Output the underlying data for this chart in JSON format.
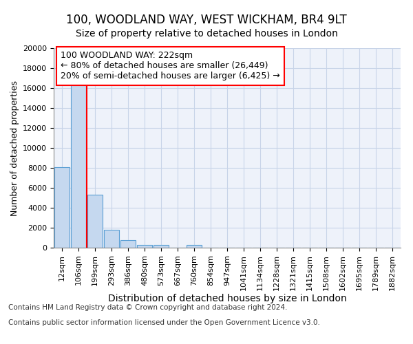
{
  "title1": "100, WOODLAND WAY, WEST WICKHAM, BR4 9LT",
  "title2": "Size of property relative to detached houses in London",
  "xlabel": "Distribution of detached houses by size in London",
  "ylabel": "Number of detached properties",
  "categories": [
    "12sqm",
    "106sqm",
    "199sqm",
    "293sqm",
    "386sqm",
    "480sqm",
    "573sqm",
    "667sqm",
    "760sqm",
    "854sqm",
    "947sqm",
    "1041sqm",
    "1134sqm",
    "1228sqm",
    "1321sqm",
    "1415sqm",
    "1508sqm",
    "1602sqm",
    "1695sqm",
    "1789sqm",
    "1882sqm"
  ],
  "values": [
    8100,
    16600,
    5300,
    1800,
    750,
    300,
    250,
    0,
    250,
    0,
    0,
    0,
    0,
    0,
    0,
    0,
    0,
    0,
    0,
    0,
    0
  ],
  "bar_color": "#c5d8ef",
  "bar_edge_color": "#5a9fd4",
  "bar_edge_width": 0.8,
  "grid_color": "#c8d4e8",
  "background_color": "#eef2fa",
  "red_line_x": 1.5,
  "annotation_text": "100 WOODLAND WAY: 222sqm\n← 80% of detached houses are smaller (26,449)\n20% of semi-detached houses are larger (6,425) →",
  "ylim": [
    0,
    20000
  ],
  "yticks": [
    0,
    2000,
    4000,
    6000,
    8000,
    10000,
    12000,
    14000,
    16000,
    18000,
    20000
  ],
  "footer_line1": "Contains HM Land Registry data © Crown copyright and database right 2024.",
  "footer_line2": "Contains public sector information licensed under the Open Government Licence v3.0.",
  "title1_fontsize": 12,
  "title2_fontsize": 10,
  "xlabel_fontsize": 10,
  "ylabel_fontsize": 9,
  "tick_fontsize": 8,
  "footer_fontsize": 7.5,
  "ann_fontsize": 9
}
